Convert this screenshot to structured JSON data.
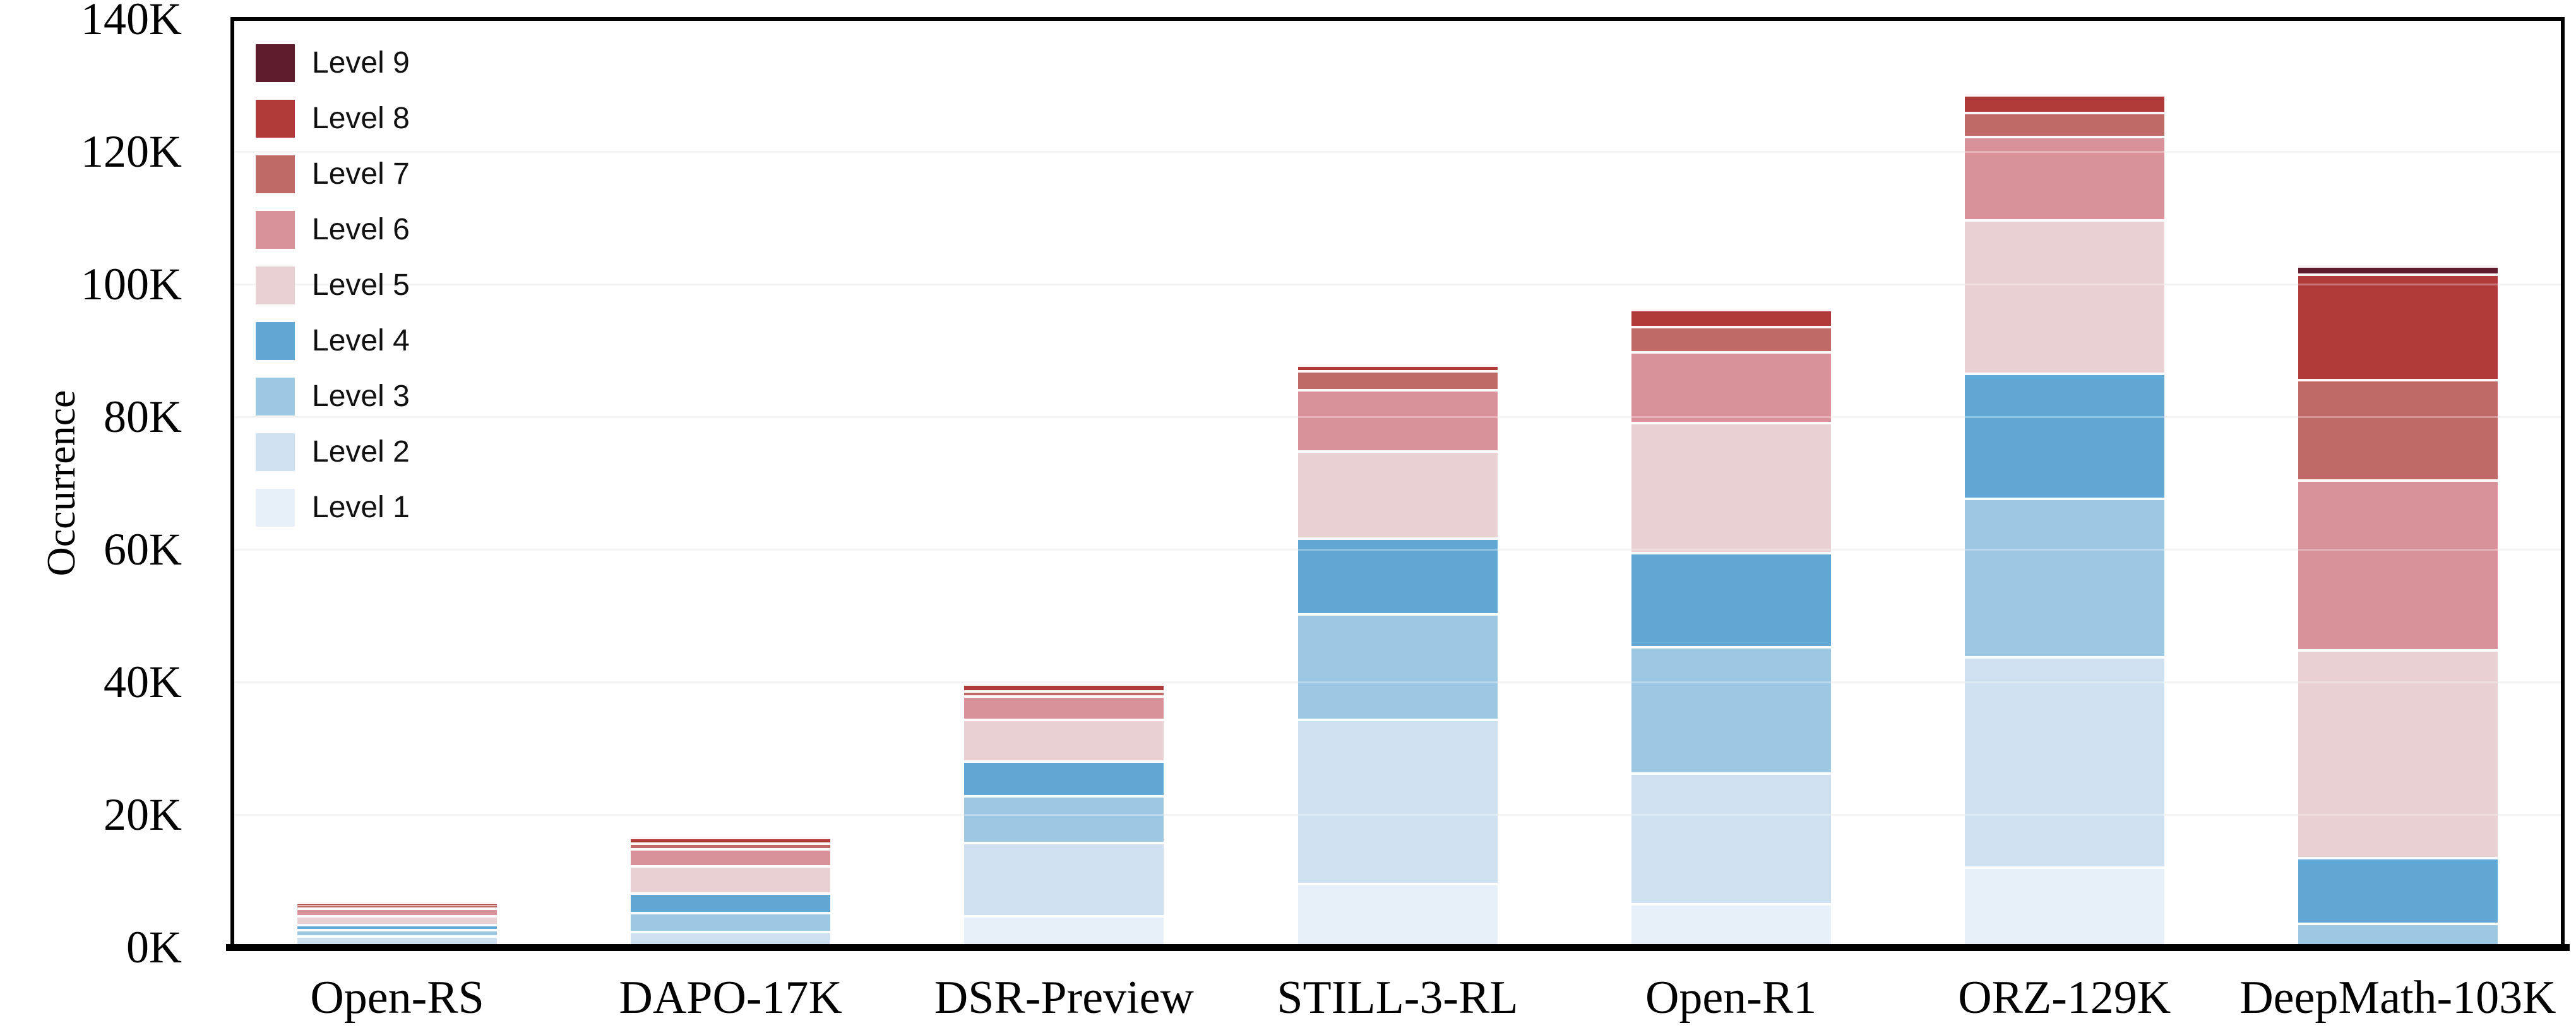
{
  "chart_data": {
    "type": "bar",
    "stacked": true,
    "unit": "thousands (K)",
    "title": "",
    "xlabel": "",
    "ylabel": "Occurrence",
    "ylim_k": [
      0,
      140
    ],
    "ytick_step_k": 20,
    "ytick_labels": [
      "0K",
      "20K",
      "40K",
      "60K",
      "80K",
      "100K",
      "120K",
      "140K"
    ],
    "grid": "horizontal",
    "legend_position": "upper left",
    "categories": [
      "Open-RS",
      "DAPO-17K",
      "DSR-Preview",
      "STILL-3-RL",
      "Open-R1",
      "ORZ-129K",
      "DeepMath-103K"
    ],
    "totals_k": [
      6.9,
      16.7,
      39.8,
      87.9,
      96.3,
      128.7,
      102.9
    ],
    "series": [
      {
        "name": "Level 1",
        "color": "#e7f0f8",
        "values_k": [
          0.5,
          0.2,
          4.9,
          9.7,
          6.7,
          12.2,
          0
        ]
      },
      {
        "name": "Level 2",
        "color": "#cfe1f0",
        "values_k": [
          1.3,
          2.3,
          11.0,
          24.8,
          19.7,
          31.7,
          0
        ]
      },
      {
        "name": "Level 3",
        "color": "#9cc8e3",
        "values_k": [
          1.0,
          2.8,
          7.1,
          15.9,
          19.0,
          23.9,
          3.7
        ]
      },
      {
        "name": "Level 4",
        "color": "#61a9d4",
        "values_k": [
          0.7,
          3.0,
          5.2,
          11.4,
          14.2,
          18.9,
          9.9
        ]
      },
      {
        "name": "Level 5",
        "color": "#e9d0d2",
        "values_k": [
          1.4,
          4.1,
          6.3,
          13.2,
          19.6,
          23.1,
          31.4
        ]
      },
      {
        "name": "Level 6",
        "color": "#da929a",
        "values_k": [
          1.1,
          2.6,
          3.5,
          9.2,
          10.7,
          12.6,
          25.6
        ]
      },
      {
        "name": "Level 7",
        "color": "#c06a68",
        "values_k": [
          0.35,
          0.8,
          0.8,
          2.9,
          3.8,
          3.6,
          15.1
        ]
      },
      {
        "name": "Level 8",
        "color": "#b03a3a",
        "values_k": [
          0.55,
          0.9,
          1.0,
          0.8,
          2.6,
          2.7,
          15.9
        ]
      },
      {
        "name": "Level 9",
        "color": "#5f1c2c",
        "values_k": [
          0,
          0,
          0,
          0,
          0,
          0,
          1.3
        ]
      }
    ],
    "legend_order_top_to_bottom": [
      "Level 9",
      "Level 8",
      "Level 7",
      "Level 6",
      "Level 5",
      "Level 4",
      "Level 3",
      "Level 2",
      "Level 1"
    ]
  }
}
